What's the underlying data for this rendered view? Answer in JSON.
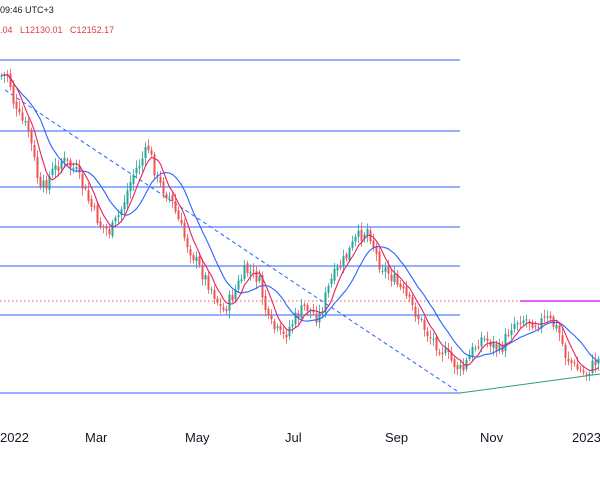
{
  "header": {
    "time_text": "09:46 UTC+3",
    "ohlc_text": ".04   L12130.01   C12152.17"
  },
  "chart_data": {
    "type": "candlestick",
    "x_tick_labels": [
      "2022",
      "Mar",
      "May",
      "Jul",
      "Sep",
      "Nov",
      "2023"
    ],
    "horizontal_levels": [
      "level-1",
      "level-2",
      "level-3",
      "level-4",
      "level-5",
      "level-6",
      "level-7"
    ],
    "dotted_level": "dotted-red",
    "trendlines": [
      "dashed-downtrend",
      "green-support",
      "magenta-resistance"
    ],
    "moving_averages": [
      "fast-ma",
      "slow-ma"
    ],
    "grid": false,
    "colors": {
      "up": "#26a69a",
      "down": "#ef5350",
      "level": "#2962ff",
      "fast_ma": "#e91e63",
      "slow_ma": "#2962ff",
      "dashed_trend": "#2962ff",
      "support": "#2e9e6b",
      "resistance": "#d500f9",
      "dotted": "#ef5350",
      "text": "#131722",
      "ohlc": "#e03a3e"
    }
  }
}
